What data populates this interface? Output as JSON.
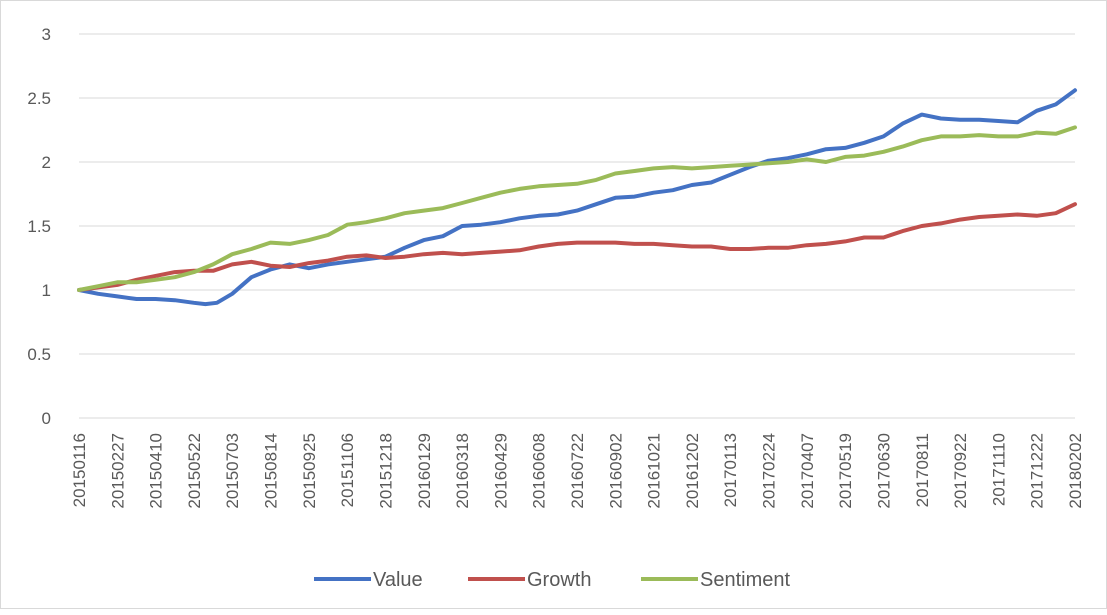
{
  "chart_data": {
    "type": "line",
    "title": "",
    "xlabel": "",
    "ylabel": "",
    "ylim": [
      0,
      3
    ],
    "yticks": [
      "0",
      "0.5",
      "1",
      "1.5",
      "2",
      "2.5",
      "3"
    ],
    "grid": "horizontal",
    "legend_position": "bottom",
    "x_tick_labels": [
      "20150116",
      "20150227",
      "20150410",
      "20150522",
      "20150703",
      "20150814",
      "20150925",
      "20151106",
      "20151218",
      "20160129",
      "20160318",
      "20160429",
      "20160608",
      "20160722",
      "20160902",
      "20161021",
      "20161202",
      "20170113",
      "20170224",
      "20170407",
      "20170519",
      "20170630",
      "20170811",
      "20170922",
      "20171110",
      "20171222",
      "20180202"
    ],
    "series": [
      {
        "name": "Value",
        "color": "#4472c4",
        "x": [
          0,
          0.5,
          1,
          1.5,
          2,
          2.5,
          3,
          3.3,
          3.6,
          4,
          4.5,
          5,
          5.5,
          6,
          6.5,
          7,
          7.5,
          8,
          8.5,
          9,
          9.5,
          10,
          10.5,
          11,
          11.5,
          12,
          12.5,
          13,
          13.5,
          14,
          14.5,
          15,
          15.5,
          16,
          16.5,
          17,
          17.5,
          18,
          18.5,
          19,
          19.5,
          20,
          20.5,
          21,
          21.5,
          22,
          22.5,
          23,
          23.5,
          24,
          24.5,
          25,
          25.5,
          26
        ],
        "values": [
          1.0,
          0.97,
          0.95,
          0.93,
          0.93,
          0.92,
          0.9,
          0.89,
          0.9,
          0.97,
          1.1,
          1.16,
          1.2,
          1.17,
          1.2,
          1.22,
          1.24,
          1.26,
          1.33,
          1.39,
          1.42,
          1.5,
          1.51,
          1.53,
          1.56,
          1.58,
          1.59,
          1.62,
          1.67,
          1.72,
          1.73,
          1.76,
          1.78,
          1.82,
          1.84,
          1.9,
          1.96,
          2.01,
          2.03,
          2.06,
          2.1,
          2.11,
          2.15,
          2.2,
          2.3,
          2.37,
          2.34,
          2.33,
          2.33,
          2.32,
          2.31,
          2.4,
          2.45,
          2.56
        ]
      },
      {
        "name": "Growth",
        "color": "#c0504d",
        "x": [
          0,
          0.5,
          1,
          1.5,
          2,
          2.5,
          3,
          3.5,
          4,
          4.5,
          5,
          5.5,
          6,
          6.5,
          7,
          7.5,
          8,
          8.5,
          9,
          9.5,
          10,
          10.5,
          11,
          11.5,
          12,
          12.5,
          13,
          13.5,
          14,
          14.5,
          15,
          15.5,
          16,
          16.5,
          17,
          17.5,
          18,
          18.5,
          19,
          19.5,
          20,
          20.5,
          21,
          21.5,
          22,
          22.5,
          23,
          23.5,
          24,
          24.5,
          25,
          25.5,
          26
        ],
        "values": [
          1.0,
          1.02,
          1.04,
          1.08,
          1.11,
          1.14,
          1.15,
          1.15,
          1.2,
          1.22,
          1.19,
          1.18,
          1.21,
          1.23,
          1.26,
          1.27,
          1.25,
          1.26,
          1.28,
          1.29,
          1.28,
          1.29,
          1.3,
          1.31,
          1.34,
          1.36,
          1.37,
          1.37,
          1.37,
          1.36,
          1.36,
          1.35,
          1.34,
          1.34,
          1.32,
          1.32,
          1.33,
          1.33,
          1.35,
          1.36,
          1.38,
          1.41,
          1.41,
          1.46,
          1.5,
          1.52,
          1.55,
          1.57,
          1.58,
          1.59,
          1.58,
          1.6,
          1.67
        ]
      },
      {
        "name": "Sentiment",
        "color": "#9bbb59",
        "x": [
          0,
          0.5,
          1,
          1.5,
          2,
          2.5,
          3,
          3.5,
          4,
          4.5,
          5,
          5.5,
          6,
          6.5,
          7,
          7.5,
          8,
          8.5,
          9,
          9.5,
          10,
          10.5,
          11,
          11.5,
          12,
          12.5,
          13,
          13.5,
          14,
          14.5,
          15,
          15.5,
          16,
          16.5,
          17,
          17.5,
          18,
          18.5,
          19,
          19.5,
          20,
          20.5,
          21,
          21.5,
          22,
          22.5,
          23,
          23.5,
          24,
          24.5,
          25,
          25.5,
          26
        ],
        "values": [
          1.0,
          1.03,
          1.06,
          1.06,
          1.08,
          1.1,
          1.14,
          1.2,
          1.28,
          1.32,
          1.37,
          1.36,
          1.39,
          1.43,
          1.51,
          1.53,
          1.56,
          1.6,
          1.62,
          1.64,
          1.68,
          1.72,
          1.76,
          1.79,
          1.81,
          1.82,
          1.83,
          1.86,
          1.91,
          1.93,
          1.95,
          1.96,
          1.95,
          1.96,
          1.97,
          1.98,
          1.99,
          2.0,
          2.02,
          2.0,
          2.04,
          2.05,
          2.08,
          2.12,
          2.17,
          2.2,
          2.2,
          2.21,
          2.2,
          2.2,
          2.23,
          2.22,
          2.27
        ]
      }
    ]
  }
}
